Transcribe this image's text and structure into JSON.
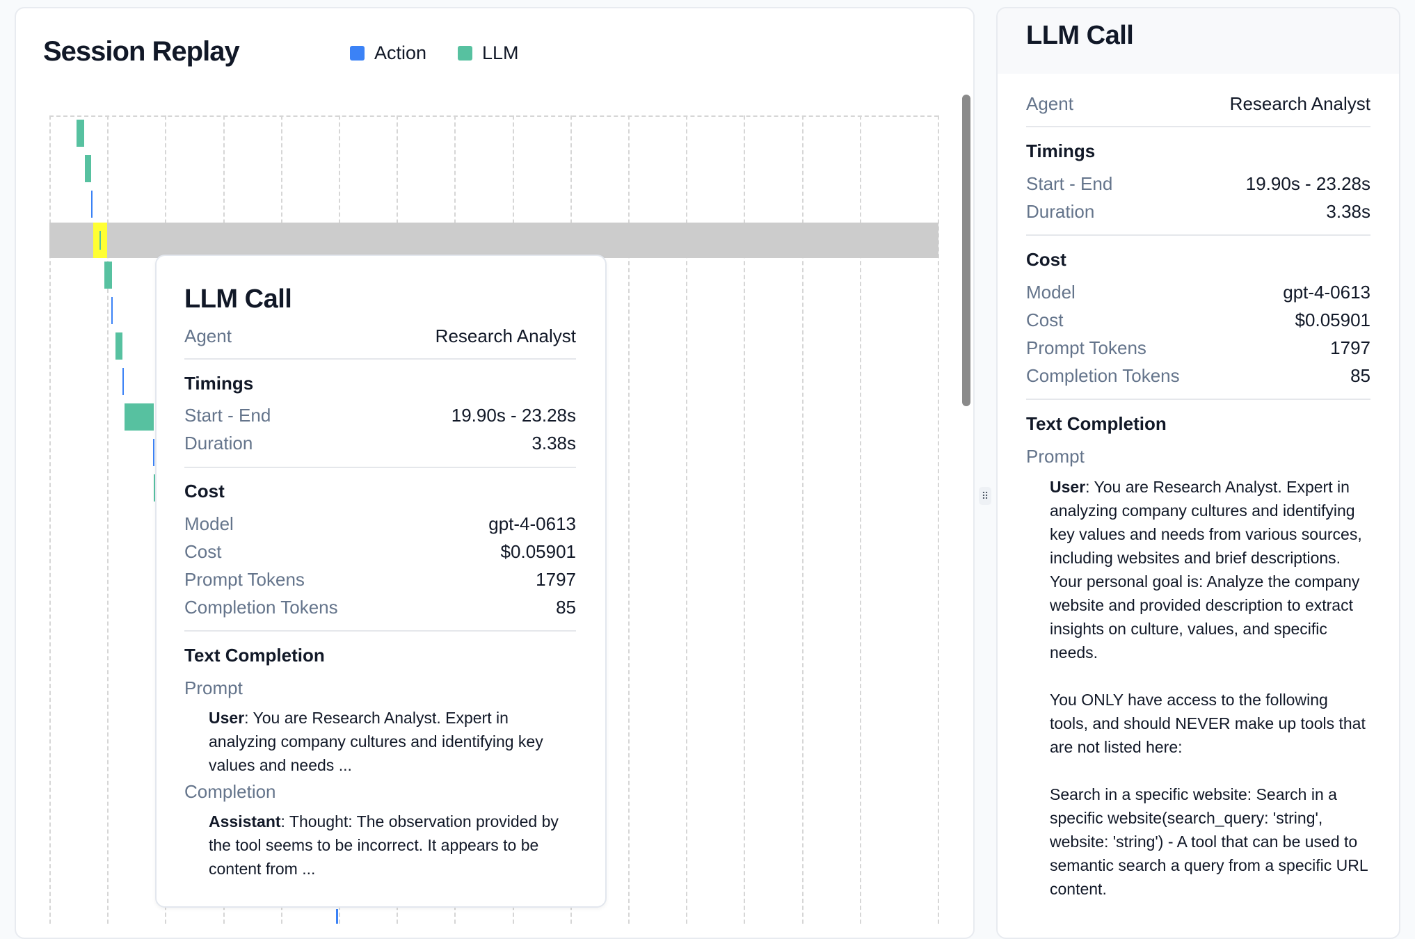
{
  "session": {
    "title": "Session Replay",
    "legend": [
      {
        "label": "Action",
        "color": "#3b82f6"
      },
      {
        "label": "LLM",
        "color": "#57c1a0"
      }
    ]
  },
  "timeline": {
    "highlight_color": "#cccccc",
    "selected_color": "#ffff33",
    "events": [
      {
        "type": "llm"
      },
      {
        "type": "llm"
      },
      {
        "type": "action"
      },
      {
        "type": "llm",
        "selected": true
      },
      {
        "type": "llm"
      },
      {
        "type": "action"
      },
      {
        "type": "llm"
      },
      {
        "type": "action"
      },
      {
        "type": "llm"
      },
      {
        "type": "action"
      },
      {
        "type": "llm"
      },
      {
        "type": "action"
      }
    ]
  },
  "detail": {
    "title": "LLM Call",
    "agent_label": "Agent",
    "agent": "Research Analyst",
    "timings_header": "Timings",
    "start_end_label": "Start - End",
    "start_end": "19.90s - 23.28s",
    "duration_label": "Duration",
    "duration": "3.38s",
    "cost_header": "Cost",
    "model_label": "Model",
    "model": "gpt-4-0613",
    "cost_label": "Cost",
    "cost": "$0.05901",
    "prompt_tokens_label": "Prompt Tokens",
    "prompt_tokens": "1797",
    "completion_tokens_label": "Completion Tokens",
    "completion_tokens": "85",
    "text_completion_header": "Text Completion",
    "prompt_label": "Prompt",
    "completion_label": "Completion",
    "user_role": "User",
    "assistant_role": "Assistant",
    "prompt_preview": ": You are Research Analyst. Expert in analyzing company cultures and identifying key values and needs ...",
    "completion_preview": ": Thought: The observation provided by the tool seems to be incorrect. It appears to be content from ...",
    "prompt_full": ": You are Research Analyst. Expert in analyzing company cultures and identifying key values and needs from various sources, including websites and brief descriptions.\nYour personal goal is: Analyze the company website and provided description to extract insights on culture, values, and specific needs.\n\nYou ONLY have access to the following tools, and should NEVER make up tools that are not listed here:\n\nSearch in a specific website: Search in a specific website(search_query: 'string', website: 'string') - A tool that can be used to semantic search a query from a specific URL content."
  }
}
